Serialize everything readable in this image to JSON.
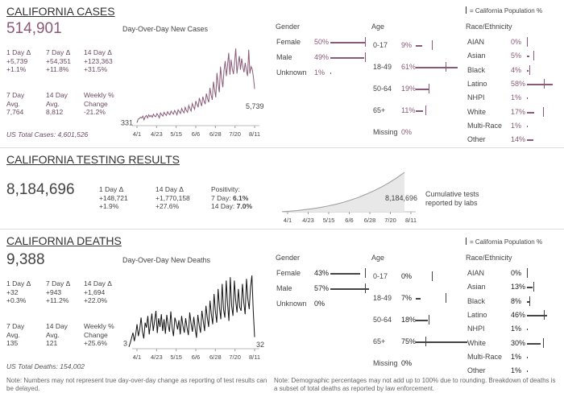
{
  "colors": {
    "cases": "#8a5a78",
    "deaths": "#222222",
    "testing": "#999999"
  },
  "legend_label": "= California Population %",
  "cases": {
    "title": "CALIFORNIA CASES",
    "total": "514,901",
    "chart_label": "Day-Over-Day New Cases",
    "stats": [
      {
        "label": "1 Day Δ",
        "l1": "+5,739",
        "l2": "+1.1%"
      },
      {
        "label": "7 Day Δ",
        "l1": "+54,351",
        "l2": "+11.8%"
      },
      {
        "label": "14 Day Δ",
        "l1": "+123,363",
        "l2": "+31.5%"
      },
      {
        "label": "7 Day",
        "l1": "Avg.",
        "l2": "7,764"
      },
      {
        "label": "14 Day",
        "l1": "Avg.",
        "l2": "8,812"
      },
      {
        "label": "Weekly %",
        "l1": "Change",
        "l2": "-21.2%"
      }
    ],
    "us_total": "US Total Cases: 4,601,526",
    "start_label": "331",
    "end_label": "5,739"
  },
  "testing": {
    "title": "CALIFORNIA TESTING RESULTS",
    "total": "8,184,696",
    "stats": [
      {
        "label": "1 Day Δ",
        "l1": "+148,721",
        "l2": "+1.9%"
      },
      {
        "label": "14 Day Δ",
        "l1": "+1,770,158",
        "l2": "+27.6%"
      }
    ],
    "positivity_label": "Positivity:",
    "pos7_label": "7 Day: ",
    "pos7": "6.1%",
    "pos14_label": "14 Day: ",
    "pos14": "7.0%",
    "end_label": "8,184,696",
    "note": "Cumulative tests reported by labs"
  },
  "deaths": {
    "title": "CALIFORNIA DEATHS",
    "total": "9,388",
    "chart_label": "Day-Over-Day New Deaths",
    "stats": [
      {
        "label": "1 Day Δ",
        "l1": "+32",
        "l2": "+0.3%"
      },
      {
        "label": "7 Day Δ",
        "l1": "+943",
        "l2": "+11.2%"
      },
      {
        "label": "14 Day Δ",
        "l1": "+1,694",
        "l2": "+22.0%"
      },
      {
        "label": "7 Day",
        "l1": "Avg.",
        "l2": "135"
      },
      {
        "label": "14 Day",
        "l1": "Avg.",
        "l2": "121"
      },
      {
        "label": "Weekly %",
        "l1": "Change",
        "l2": "+25.6%"
      }
    ],
    "us_total": "US Total Deaths: 154,002",
    "start_label": "3",
    "end_label": "32"
  },
  "demographics": {
    "cases": {
      "gender_header": "Gender",
      "age_header": "Age",
      "race_header": "Race/Ethnicity",
      "gender": [
        {
          "label": "Female",
          "pct": "50%",
          "value": 50,
          "pop": 51
        },
        {
          "label": "Male",
          "pct": "49%",
          "value": 49,
          "pop": 50
        },
        {
          "label": "Unknown",
          "pct": "1%",
          "value": 1,
          "pop": null
        }
      ],
      "age": [
        {
          "label": "0-17",
          "pct": "9%",
          "value": 9,
          "pop": 23
        },
        {
          "label": "18-49",
          "pct": "61%",
          "value": 61,
          "pop": 44
        },
        {
          "label": "50-64",
          "pct": "19%",
          "value": 19,
          "pop": 19
        },
        {
          "label": "65+",
          "pct": "11%",
          "value": 11,
          "pop": 14
        },
        {
          "label": "Missing",
          "pct": "0%",
          "value": 0,
          "pop": null
        }
      ],
      "race": [
        {
          "label": "AIAN",
          "pct": "0%",
          "value": 0,
          "pop": 0.5
        },
        {
          "label": "Asian",
          "pct": "5%",
          "value": 5,
          "pop": 15
        },
        {
          "label": "Black",
          "pct": "4%",
          "value": 4,
          "pop": 6
        },
        {
          "label": "Latino",
          "pct": "58%",
          "value": 58,
          "pop": 39
        },
        {
          "label": "NHPI",
          "pct": "1%",
          "value": 1,
          "pop": null
        },
        {
          "label": "White",
          "pct": "17%",
          "value": 17,
          "pop": 37
        },
        {
          "label": "Multi-Race",
          "pct": "1%",
          "value": 1,
          "pop": null
        },
        {
          "label": "Other",
          "pct": "14%",
          "value": 14,
          "pop": null
        }
      ]
    },
    "deaths": {
      "gender_header": "Gender",
      "age_header": "Age",
      "race_header": "Race/Ethnicity",
      "gender": [
        {
          "label": "Female",
          "pct": "43%",
          "value": 43,
          "pop": 51
        },
        {
          "label": "Male",
          "pct": "57%",
          "value": 57,
          "pop": 50
        },
        {
          "label": "Unknown",
          "pct": "0%",
          "value": 0,
          "pop": null
        }
      ],
      "age": [
        {
          "label": "0-17",
          "pct": "0%",
          "value": 0,
          "pop": 23
        },
        {
          "label": "18-49",
          "pct": "7%",
          "value": 7,
          "pop": 44
        },
        {
          "label": "50-64",
          "pct": "18%",
          "value": 18,
          "pop": 19
        },
        {
          "label": "65+",
          "pct": "75%",
          "value": 75,
          "pop": 14
        },
        {
          "label": "Missing",
          "pct": "0%",
          "value": 0,
          "pop": null
        }
      ],
      "race": [
        {
          "label": "AIAN",
          "pct": "0%",
          "value": 0,
          "pop": 0.5
        },
        {
          "label": "Asian",
          "pct": "13%",
          "value": 13,
          "pop": 15
        },
        {
          "label": "Black",
          "pct": "8%",
          "value": 8,
          "pop": 6
        },
        {
          "label": "Latino",
          "pct": "46%",
          "value": 46,
          "pop": 39
        },
        {
          "label": "NHPI",
          "pct": "1%",
          "value": 1,
          "pop": null
        },
        {
          "label": "White",
          "pct": "30%",
          "value": 30,
          "pop": 37
        },
        {
          "label": "Multi-Race",
          "pct": "1%",
          "value": 1,
          "pop": null
        },
        {
          "label": "Other",
          "pct": "1%",
          "value": 1,
          "pop": null
        }
      ]
    }
  },
  "notes": {
    "left": "Note: Numbers may not represent true day-over-day change as reporting of test results can be delayed.",
    "right": "Note: Demographic percentages may not add up to 100% due to rounding. Breakdown of deaths is a subset of total deaths as reported by law enforcement."
  },
  "chart_data": [
    {
      "type": "line",
      "title": "Day-Over-Day New Cases",
      "x_ticks": [
        "4/1",
        "4/23",
        "5/15",
        "6/6",
        "6/28",
        "7/20",
        "8/11"
      ],
      "ylim": [
        0,
        13000
      ],
      "values": [
        331,
        900,
        1000,
        1200,
        1100,
        1400,
        800,
        1300,
        1500,
        1100,
        1600,
        1300,
        1500,
        1200,
        1700,
        1400,
        1300,
        1800,
        1500,
        1100,
        1900,
        1600,
        1400,
        2000,
        1700,
        1500,
        2100,
        1800,
        1600,
        2200,
        1900,
        1700,
        2300,
        2000,
        1600,
        2400,
        2100,
        1800,
        2600,
        2200,
        1900,
        2800,
        2300,
        2000,
        3100,
        2600,
        2200,
        3400,
        2900,
        2500,
        3800,
        3300,
        2800,
        4300,
        3600,
        3000,
        4500,
        3800,
        3300,
        5000,
        4200,
        3600,
        5900,
        4800,
        4000,
        6900,
        5600,
        4400,
        8300,
        6500,
        5200,
        9300,
        7400,
        6000,
        8700,
        10200,
        7800,
        9500,
        11500,
        8000,
        10400,
        9000,
        8100,
        10000,
        12200,
        8200,
        9800,
        11000,
        8800,
        10600,
        9300,
        8400,
        9900,
        8700,
        7800,
        12000,
        8200,
        9300,
        8900,
        7600,
        5739
      ]
    },
    {
      "type": "area",
      "title": "Cumulative tests reported by labs",
      "x_ticks": [
        "4/1",
        "4/23",
        "5/15",
        "6/6",
        "6/28",
        "7/20",
        "8/11"
      ],
      "ylim": [
        0,
        8184696
      ],
      "values": [
        29000,
        120000,
        260000,
        450000,
        650000,
        900000,
        1200000,
        1550000,
        1950000,
        2450000,
        3000000,
        3650000,
        4350000,
        5150000,
        6050000,
        7050000,
        8184696
      ]
    },
    {
      "type": "line",
      "title": "Day-Over-Day New Deaths",
      "x_ticks": [
        "4/1",
        "4/23",
        "5/15",
        "6/6",
        "6/28",
        "7/20",
        "8/11"
      ],
      "ylim": [
        0,
        220
      ],
      "values": [
        3,
        15,
        30,
        45,
        20,
        40,
        70,
        35,
        55,
        90,
        48,
        28,
        75,
        60,
        95,
        40,
        72,
        102,
        50,
        80,
        110,
        44,
        88,
        62,
        100,
        50,
        85,
        42,
        98,
        70,
        48,
        108,
        60,
        35,
        90,
        75,
        55,
        82,
        40,
        95,
        65,
        45,
        88,
        60,
        38,
        105,
        72,
        48,
        92,
        58,
        30,
        98,
        68,
        45,
        110,
        80,
        50,
        125,
        90,
        62,
        140,
        100,
        70,
        160,
        108,
        75,
        175,
        120,
        85,
        190,
        115,
        90,
        200,
        130,
        80,
        210,
        125,
        95,
        200,
        140,
        105,
        175,
        120,
        110,
        190,
        135,
        100,
        205,
        145,
        115,
        180,
        215,
        110,
        32
      ]
    }
  ]
}
